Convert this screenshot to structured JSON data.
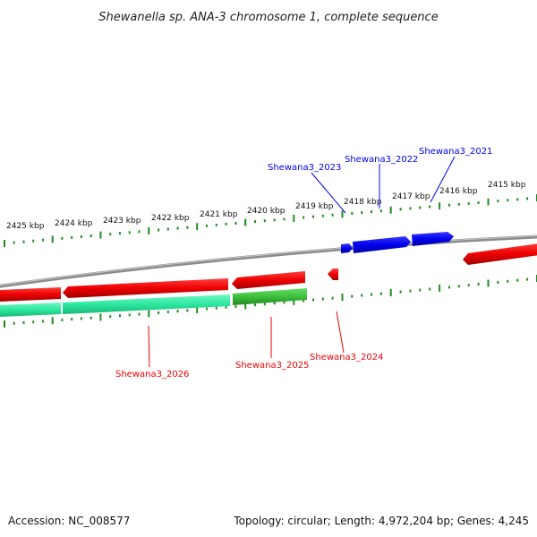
{
  "title": "Shewanella sp. ANA-3 chromosome 1, complete sequence",
  "footer": {
    "accession": "Accession: NC_008577",
    "summary": "Topology: circular; Length: 4,972,204 bp; Genes: 4,245"
  },
  "scale_labels": [
    "2425 kbp",
    "2424 kbp",
    "2423 kbp",
    "2422 kbp",
    "2421 kbp",
    "2420 kbp",
    "2419 kbp",
    "2418 kbp",
    "2417 kbp",
    "2416 kbp",
    "2415 kbp"
  ],
  "forward_gene_labels": [
    "Shewana3_2023",
    "Shewana3_2022",
    "Shewana3_2021"
  ],
  "reverse_gene_labels": [
    "Shewana3_2026",
    "Shewana3_2025",
    "Shewana3_2024"
  ],
  "colors": {
    "forward_gene": "#0000ee",
    "reverse_gene": "#ee0000",
    "backbone": "#888888",
    "ticks": "#228b22",
    "track_teal": "#2ee8a0",
    "track_green": "#3cc03c"
  }
}
